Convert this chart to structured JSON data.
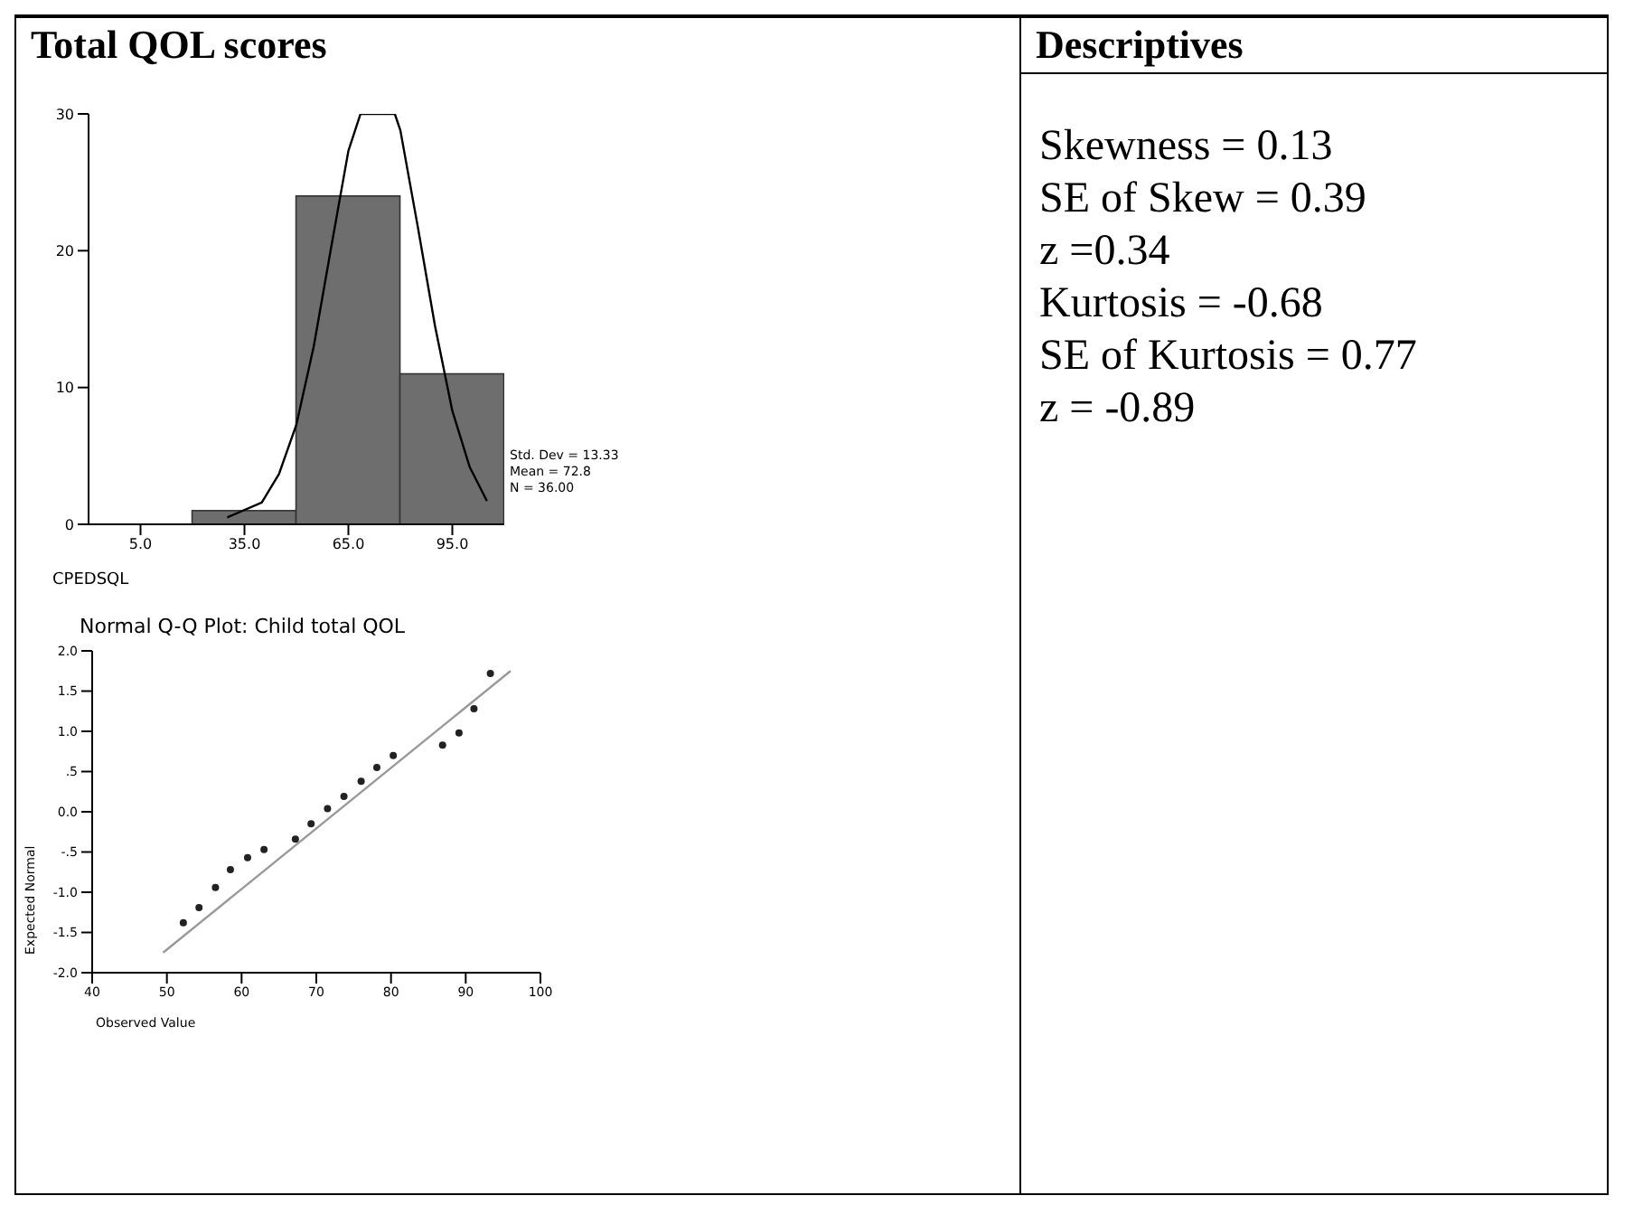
{
  "chart_data": [
    {
      "type": "histogram",
      "title": "Total QOL scores",
      "xlabel": "CPEDSQL",
      "bins": [
        20,
        50,
        80,
        110
      ],
      "values": [
        1,
        24,
        11
      ],
      "color": "#6e6e6e",
      "xlim": [
        -10,
        110
      ],
      "xticks": [
        {
          "value": 5,
          "label": "5.0"
        },
        {
          "value": 35,
          "label": "35.0"
        },
        {
          "value": 65,
          "label": "65.0"
        },
        {
          "value": 95,
          "label": "95.0"
        }
      ],
      "ylim": [
        0,
        30
      ],
      "yticks": [
        0,
        10,
        20,
        30
      ],
      "series": [
        {
          "type": "line",
          "color": "#000000",
          "x": [
            30,
            40,
            45,
            50,
            55,
            60,
            65,
            68.5,
            78.4,
            80,
            85,
            90,
            95,
            100,
            105
          ],
          "values": [
            0.5,
            1.6,
            3.7,
            7.3,
            13,
            20.2,
            27.3,
            30,
            30,
            28.8,
            21.8,
            14.5,
            8.3,
            4.2,
            1.7
          ]
        }
      ],
      "annotations": [
        "Std. Dev = 13.33",
        "Mean = 72.8",
        "N = 36.00"
      ]
    },
    {
      "type": "scatter",
      "title": "Normal Q-Q Plot: Child total QOL",
      "xlabel": "Observed Value",
      "ylabel": "Expected Normal",
      "xlim": [
        40,
        100
      ],
      "xticks": [
        40,
        50,
        60,
        70,
        80,
        90,
        100
      ],
      "ylim": [
        -2,
        2
      ],
      "yticks": [
        {
          "value": -2,
          "label": "-2.0"
        },
        {
          "value": -1.5,
          "label": "-1.5"
        },
        {
          "value": -1,
          "label": "-1.0"
        },
        {
          "value": -0.5,
          "label": "-.5"
        },
        {
          "value": 0,
          "label": "0.0"
        },
        {
          "value": 0.5,
          "label": ".5"
        },
        {
          "value": 1,
          "label": "1.0"
        },
        {
          "value": 1.5,
          "label": "1.5"
        },
        {
          "value": 2,
          "label": "2.0"
        }
      ],
      "series": [
        {
          "type": "scatter",
          "color": "#222222",
          "marker": "circle",
          "x": [
            52.2,
            54.3,
            56.5,
            58.5,
            60.8,
            63.0,
            67.2,
            69.3,
            71.5,
            73.7,
            76.0,
            78.1,
            80.3,
            86.9,
            89.1,
            91.1,
            93.3
          ],
          "values": [
            -1.38,
            -1.19,
            -0.94,
            -0.72,
            -0.57,
            -0.47,
            -0.34,
            -0.15,
            0.04,
            0.19,
            0.38,
            0.55,
            0.7,
            0.83,
            0.98,
            1.28,
            1.72
          ]
        },
        {
          "type": "line",
          "color": "#999999",
          "x": [
            49.5,
            96
          ],
          "values": [
            -1.75,
            1.75
          ]
        }
      ]
    },
    {
      "type": "other",
      "title": "Descriptives",
      "annotations": [
        "Skewness = 0.13",
        "SE of Skew = 0.39",
        "z =0.34",
        "Kurtosis = -0.68",
        "SE of Kurtosis = 0.77",
        "z = -0.89"
      ]
    }
  ]
}
